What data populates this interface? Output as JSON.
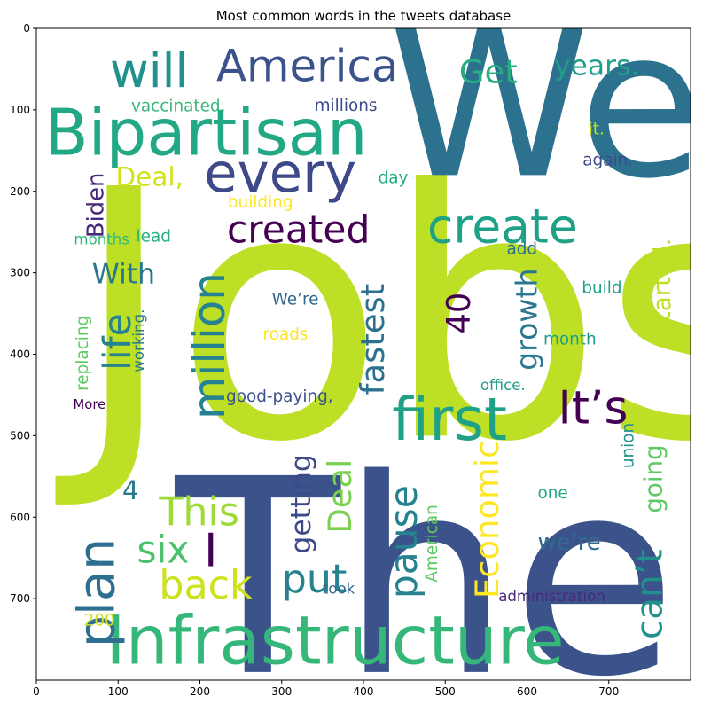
{
  "chart_data": {
    "type": "wordcloud",
    "title": "Most common words in the tweets database",
    "xlim": [
      0,
      800
    ],
    "ylim": [
      800,
      0
    ],
    "xticks": [
      0,
      100,
      200,
      300,
      400,
      500,
      600,
      700
    ],
    "yticks": [
      0,
      100,
      200,
      300,
      400,
      500,
      600,
      700
    ],
    "grid": false,
    "background": "#ffffff",
    "words": [
      {
        "text": "Jobs",
        "x": 45,
        "y": 500,
        "size": 420,
        "rot": 0,
        "color": "#bddf26"
      },
      {
        "text": "The",
        "x": 170,
        "y": 790,
        "size": 330,
        "rot": 0,
        "color": "#3b528b"
      },
      {
        "text": "We",
        "x": 430,
        "y": 180,
        "size": 250,
        "rot": 0,
        "color": "#2c728e"
      },
      {
        "text": "Infrastructure",
        "x": 85,
        "y": 780,
        "size": 82,
        "rot": 0,
        "color": "#35b779"
      },
      {
        "text": "Bipartisan",
        "x": 10,
        "y": 155,
        "size": 78,
        "rot": 0,
        "color": "#22a884"
      },
      {
        "text": "every",
        "x": 205,
        "y": 200,
        "size": 66,
        "rot": 0,
        "color": "#3e4989"
      },
      {
        "text": "first",
        "x": 435,
        "y": 505,
        "size": 72,
        "rot": 0,
        "color": "#1fa188"
      },
      {
        "text": "will",
        "x": 90,
        "y": 72,
        "size": 58,
        "rot": 0,
        "color": "#21918c"
      },
      {
        "text": "America",
        "x": 220,
        "y": 65,
        "size": 54,
        "rot": 0,
        "color": "#3b528b"
      },
      {
        "text": "million",
        "x": 230,
        "y": 480,
        "size": 54,
        "rot": -90,
        "color": "#26828e"
      },
      {
        "text": "plan",
        "x": 95,
        "y": 760,
        "size": 62,
        "rot": -90,
        "color": "#2e6e8e"
      },
      {
        "text": "create",
        "x": 478,
        "y": 263,
        "size": 58,
        "rot": 0,
        "color": "#1fa188"
      },
      {
        "text": "created",
        "x": 233,
        "y": 263,
        "size": 46,
        "rot": 0,
        "color": "#440154"
      },
      {
        "text": "It’s",
        "x": 638,
        "y": 485,
        "size": 56,
        "rot": 0,
        "color": "#440154"
      },
      {
        "text": "This",
        "x": 150,
        "y": 610,
        "size": 48,
        "rot": 0,
        "color": "#a0da39"
      },
      {
        "text": "put",
        "x": 300,
        "y": 692,
        "size": 48,
        "rot": 0,
        "color": "#26828e"
      },
      {
        "text": "back",
        "x": 150,
        "y": 700,
        "size": 48,
        "rot": 0,
        "color": "#cde11d"
      },
      {
        "text": "six",
        "x": 123,
        "y": 656,
        "size": 46,
        "rot": 0,
        "color": "#4ac16d"
      },
      {
        "text": "I",
        "x": 205,
        "y": 660,
        "size": 56,
        "rot": 0,
        "color": "#440154"
      },
      {
        "text": "Get",
        "x": 517,
        "y": 67,
        "size": 40,
        "rot": 0,
        "color": "#27ad81"
      },
      {
        "text": "years.",
        "x": 633,
        "y": 57,
        "size": 34,
        "rot": 0,
        "color": "#1f9e89"
      },
      {
        "text": "life",
        "x": 115,
        "y": 420,
        "size": 46,
        "rot": -90,
        "color": "#26828e"
      },
      {
        "text": "fastest",
        "x": 425,
        "y": 450,
        "size": 40,
        "rot": -90,
        "color": "#2c728e"
      },
      {
        "text": "40",
        "x": 530,
        "y": 375,
        "size": 40,
        "rot": -90,
        "color": "#440154"
      },
      {
        "text": "growth",
        "x": 612,
        "y": 420,
        "size": 36,
        "rot": -90,
        "color": "#2a788e"
      },
      {
        "text": "pause",
        "x": 465,
        "y": 700,
        "size": 46,
        "rot": -90,
        "color": "#26828e"
      },
      {
        "text": "Economic",
        "x": 565,
        "y": 700,
        "size": 40,
        "rot": -90,
        "color": "#fde725"
      },
      {
        "text": "Deal",
        "x": 385,
        "y": 620,
        "size": 40,
        "rot": -90,
        "color": "#7ad151"
      },
      {
        "text": "can’t",
        "x": 765,
        "y": 750,
        "size": 44,
        "rot": -90,
        "color": "#21918c"
      },
      {
        "text": "getting",
        "x": 335,
        "y": 645,
        "size": 34,
        "rot": -90,
        "color": "#3e4989"
      },
      {
        "text": "going",
        "x": 765,
        "y": 595,
        "size": 30,
        "rot": -90,
        "color": "#5ec962"
      },
      {
        "text": "started.",
        "x": 775,
        "y": 375,
        "size": 30,
        "rot": -90,
        "color": "#bddf26"
      },
      {
        "text": "Deal,",
        "x": 97,
        "y": 193,
        "size": 32,
        "rot": 0,
        "color": "#d2e21b"
      },
      {
        "text": "With",
        "x": 68,
        "y": 313,
        "size": 34,
        "rot": 0,
        "color": "#2a788e"
      },
      {
        "text": "4",
        "x": 105,
        "y": 578,
        "size": 32,
        "rot": 0,
        "color": "#2a788e"
      },
      {
        "text": "we’re",
        "x": 613,
        "y": 640,
        "size": 28,
        "rot": 0,
        "color": "#31688e"
      },
      {
        "text": "Biden",
        "x": 82,
        "y": 257,
        "size": 28,
        "rot": -90,
        "color": "#482878"
      },
      {
        "text": "vaccinated.",
        "x": 116,
        "y": 102,
        "size": 20,
        "rot": 0,
        "color": "#35b779"
      },
      {
        "text": "millions",
        "x": 340,
        "y": 101,
        "size": 20,
        "rot": 0,
        "color": "#3e4989"
      },
      {
        "text": "it.",
        "x": 675,
        "y": 130,
        "size": 20,
        "rot": 0,
        "color": "#bddf26"
      },
      {
        "text": "again.",
        "x": 668,
        "y": 168,
        "size": 20,
        "rot": 0,
        "color": "#3e4989"
      },
      {
        "text": "day",
        "x": 418,
        "y": 190,
        "size": 20,
        "rot": 0,
        "color": "#27ad81"
      },
      {
        "text": "building",
        "x": 234,
        "y": 220,
        "size": 20,
        "rot": 0,
        "color": "#fde725"
      },
      {
        "text": "months",
        "x": 46,
        "y": 265,
        "size": 18,
        "rot": 0,
        "color": "#35b779"
      },
      {
        "text": "lead",
        "x": 122,
        "y": 262,
        "size": 20,
        "rot": 0,
        "color": "#27ad81"
      },
      {
        "text": "add",
        "x": 575,
        "y": 277,
        "size": 20,
        "rot": 0,
        "color": "#2c728e"
      },
      {
        "text": "build",
        "x": 667,
        "y": 325,
        "size": 20,
        "rot": 0,
        "color": "#1fa188"
      },
      {
        "text": "We’re",
        "x": 288,
        "y": 339,
        "size": 20,
        "rot": 0,
        "color": "#31688e"
      },
      {
        "text": "roads",
        "x": 277,
        "y": 382,
        "size": 20,
        "rot": 0,
        "color": "#fde725"
      },
      {
        "text": "month",
        "x": 620,
        "y": 388,
        "size": 20,
        "rot": 0,
        "color": "#1f9e89"
      },
      {
        "text": "good-paying,",
        "x": 232,
        "y": 458,
        "size": 20,
        "rot": 0,
        "color": "#3b528b"
      },
      {
        "text": "office.",
        "x": 543,
        "y": 444,
        "size": 18,
        "rot": 0,
        "color": "#1f9e89"
      },
      {
        "text": "More",
        "x": 45,
        "y": 467,
        "size": 16,
        "rot": 0,
        "color": "#440154"
      },
      {
        "text": "replacing",
        "x": 63,
        "y": 445,
        "size": 20,
        "rot": -90,
        "color": "#5ec962"
      },
      {
        "text": "working.",
        "x": 131,
        "y": 422,
        "size": 18,
        "rot": -90,
        "color": "#2a788e"
      },
      {
        "text": "union",
        "x": 730,
        "y": 540,
        "size": 20,
        "rot": -90,
        "color": "#21918c"
      },
      {
        "text": "one",
        "x": 613,
        "y": 577,
        "size": 20,
        "rot": 0,
        "color": "#22a884"
      },
      {
        "text": "American",
        "x": 490,
        "y": 680,
        "size": 20,
        "rot": -90,
        "color": "#5ec962"
      },
      {
        "text": "took",
        "x": 350,
        "y": 694,
        "size": 18,
        "rot": 0,
        "color": "#31688e"
      },
      {
        "text": "administration",
        "x": 565,
        "y": 703,
        "size": 18,
        "rot": 0,
        "color": "#482878"
      },
      {
        "text": "200",
        "x": 58,
        "y": 733,
        "size": 20,
        "rot": 0,
        "color": "#d2e21b"
      },
      {
        "text": "-",
        "x": 603,
        "y": 350,
        "size": 20,
        "rot": -90,
        "color": "#26828e"
      }
    ]
  }
}
